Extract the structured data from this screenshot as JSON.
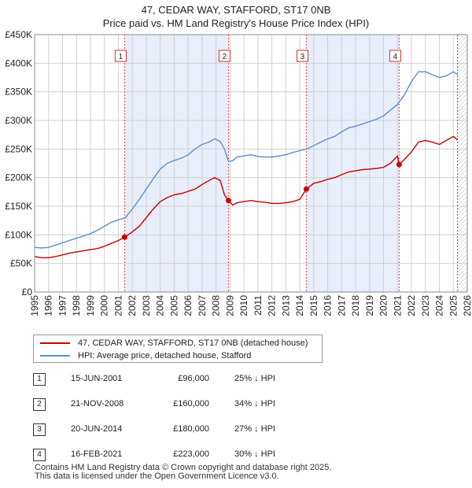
{
  "chart_data": {
    "type": "line",
    "title": "47, CEDAR WAY, STAFFORD, ST17 0NB",
    "subtitle": "Price paid vs. HM Land Registry's House Price Index (HPI)",
    "xlabel": "",
    "ylabel": "",
    "xlim": [
      1995.0,
      2026.0
    ],
    "ylim": [
      0,
      450000
    ],
    "grid": true,
    "y_ticks": [
      0,
      50000,
      100000,
      150000,
      200000,
      250000,
      300000,
      350000,
      400000,
      450000
    ],
    "y_tick_labels": [
      "£0",
      "£50K",
      "£100K",
      "£150K",
      "£200K",
      "£250K",
      "£300K",
      "£350K",
      "£400K",
      "£450K"
    ],
    "x_ticks": [
      1995,
      1996,
      1997,
      1998,
      1999,
      2000,
      2001,
      2002,
      2003,
      2004,
      2005,
      2006,
      2007,
      2008,
      2009,
      2010,
      2011,
      2012,
      2013,
      2014,
      2015,
      2016,
      2017,
      2018,
      2019,
      2020,
      2021,
      2022,
      2023,
      2024,
      2025,
      2026
    ],
    "x_tick_labels": [
      "1995",
      "1996",
      "1997",
      "1998",
      "1999",
      "2000",
      "2001",
      "2002",
      "2003",
      "2004",
      "2005",
      "2006",
      "2007",
      "2008",
      "2009",
      "2010",
      "2011",
      "2012",
      "2013",
      "2014",
      "2015",
      "2016",
      "2017",
      "2018",
      "2019",
      "2020",
      "2021",
      "2022",
      "2023",
      "2024",
      "2025",
      "2026"
    ],
    "shaded_periods": [
      [
        2001.45,
        2008.89
      ],
      [
        2014.47,
        2021.12
      ]
    ],
    "data_end": 2025.3,
    "series": [
      {
        "name": "47, CEDAR WAY, STAFFORD, ST17 0NB (detached house)",
        "color": "#cc0000",
        "x": [
          1995.0,
          1995.5,
          1996.0,
          1996.5,
          1997.0,
          1997.5,
          1998.0,
          1998.5,
          1999.0,
          1999.5,
          2000.0,
          2000.5,
          2001.0,
          2001.45,
          2001.45,
          2002.0,
          2002.5,
          2003.0,
          2003.5,
          2004.0,
          2004.5,
          2005.0,
          2005.5,
          2006.0,
          2006.5,
          2007.0,
          2007.5,
          2007.9,
          2008.3,
          2008.6,
          2008.89,
          2008.89,
          2009.2,
          2009.5,
          2010.0,
          2010.5,
          2011.0,
          2011.5,
          2012.0,
          2012.5,
          2013.0,
          2013.5,
          2014.0,
          2014.47,
          2014.47,
          2015.0,
          2015.5,
          2016.0,
          2016.5,
          2017.0,
          2017.5,
          2018.0,
          2018.5,
          2019.0,
          2019.5,
          2020.0,
          2020.5,
          2021.0,
          2021.12,
          2021.12,
          2021.5,
          2022.0,
          2022.5,
          2023.0,
          2023.5,
          2024.0,
          2024.5,
          2025.0,
          2025.3
        ],
        "values": [
          62000,
          60000,
          60000,
          62000,
          65000,
          68000,
          70000,
          72000,
          74000,
          76000,
          80000,
          85000,
          90000,
          96000,
          96000,
          105000,
          115000,
          130000,
          145000,
          158000,
          165000,
          170000,
          172000,
          176000,
          180000,
          188000,
          195000,
          200000,
          195000,
          170000,
          160000,
          160000,
          152000,
          156000,
          158000,
          160000,
          158000,
          157000,
          155000,
          155000,
          156000,
          158000,
          162000,
          180000,
          180000,
          190000,
          193000,
          197000,
          200000,
          205000,
          210000,
          212000,
          214000,
          215000,
          216000,
          218000,
          225000,
          238000,
          223000,
          223000,
          232000,
          245000,
          262000,
          265000,
          262000,
          258000,
          265000,
          272000,
          266000
        ]
      },
      {
        "name": "HPI: Average price, detached house, Stafford",
        "color": "#5b8fd1",
        "x": [
          1995.0,
          1995.5,
          1996.0,
          1996.5,
          1997.0,
          1997.5,
          1998.0,
          1998.5,
          1999.0,
          1999.5,
          2000.0,
          2000.5,
          2001.0,
          2001.5,
          2002.0,
          2002.5,
          2003.0,
          2003.5,
          2004.0,
          2004.5,
          2005.0,
          2005.5,
          2006.0,
          2006.5,
          2007.0,
          2007.5,
          2007.9,
          2008.3,
          2008.6,
          2008.9,
          2009.2,
          2009.5,
          2010.0,
          2010.5,
          2011.0,
          2011.5,
          2012.0,
          2012.5,
          2013.0,
          2013.5,
          2014.0,
          2014.5,
          2015.0,
          2015.5,
          2016.0,
          2016.5,
          2017.0,
          2017.5,
          2018.0,
          2018.5,
          2019.0,
          2019.5,
          2020.0,
          2020.5,
          2021.0,
          2021.5,
          2022.0,
          2022.5,
          2023.0,
          2023.5,
          2024.0,
          2024.5,
          2025.0,
          2025.3
        ],
        "values": [
          78000,
          77000,
          78000,
          82000,
          86000,
          90000,
          94000,
          98000,
          102000,
          108000,
          115000,
          122000,
          126000,
          130000,
          145000,
          162000,
          180000,
          198000,
          215000,
          225000,
          230000,
          234000,
          240000,
          250000,
          258000,
          262000,
          268000,
          263000,
          250000,
          228000,
          230000,
          236000,
          238000,
          240000,
          237000,
          236000,
          236000,
          238000,
          240000,
          244000,
          247000,
          250000,
          256000,
          262000,
          268000,
          272000,
          280000,
          287000,
          290000,
          294000,
          298000,
          302000,
          308000,
          318000,
          328000,
          345000,
          368000,
          385000,
          385000,
          380000,
          375000,
          378000,
          385000,
          380000
        ]
      }
    ],
    "sales": [
      {
        "label": "1",
        "x": 2001.45,
        "value": 96000
      },
      {
        "label": "2",
        "x": 2008.89,
        "value": 160000
      },
      {
        "label": "3",
        "x": 2014.47,
        "value": 180000
      },
      {
        "label": "4",
        "x": 2021.12,
        "value": 223000
      }
    ]
  },
  "legend": {
    "property_label": "47, CEDAR WAY, STAFFORD, ST17 0NB (detached house)",
    "hpi_label": "HPI: Average price, detached house, Stafford"
  },
  "table": [
    {
      "num": "1",
      "date": "15-JUN-2001",
      "price": "£96,000",
      "hpi": "25% ↓ HPI"
    },
    {
      "num": "2",
      "date": "21-NOV-2008",
      "price": "£160,000",
      "hpi": "34% ↓ HPI"
    },
    {
      "num": "3",
      "date": "20-JUN-2014",
      "price": "£180,000",
      "hpi": "27% ↓ HPI"
    },
    {
      "num": "4",
      "date": "16-FEB-2021",
      "price": "£223,000",
      "hpi": "30% ↓ HPI"
    }
  ],
  "footer": {
    "line1": "Contains HM Land Registry data © Crown copyright and database right 2025.",
    "line2": "This data is licensed under the Open Government Licence v3.0."
  }
}
